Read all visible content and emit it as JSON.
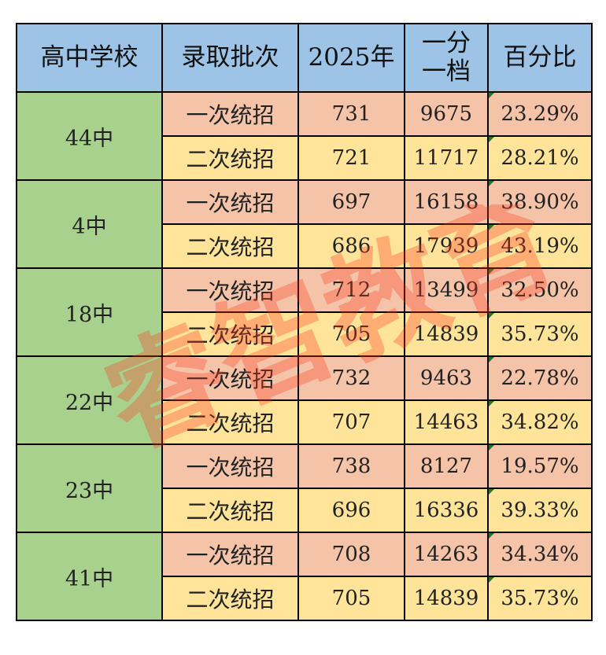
{
  "table": {
    "headers": [
      "高中学校",
      "录取批次",
      "2025年",
      "一分一档",
      "百分比"
    ],
    "header_split": {
      "line1": "一分",
      "line2": "一档"
    },
    "schools": [
      {
        "name": "44中",
        "rows": [
          {
            "batch": "一次统招",
            "score": "731",
            "rank": "9675",
            "percent": "23.29%"
          },
          {
            "batch": "二次统招",
            "score": "721",
            "rank": "11717",
            "percent": "28.21%"
          }
        ]
      },
      {
        "name": "4中",
        "rows": [
          {
            "batch": "一次统招",
            "score": "697",
            "rank": "16158",
            "percent": "38.90%"
          },
          {
            "batch": "二次统招",
            "score": "686",
            "rank": "17939",
            "percent": "43.19%"
          }
        ]
      },
      {
        "name": "18中",
        "rows": [
          {
            "batch": "一次统招",
            "score": "712",
            "rank": "13499",
            "percent": "32.50%"
          },
          {
            "batch": "二次统招",
            "score": "705",
            "rank": "14839",
            "percent": "35.73%"
          }
        ]
      },
      {
        "name": "22中",
        "rows": [
          {
            "batch": "一次统招",
            "score": "732",
            "rank": "9463",
            "percent": "22.78%"
          },
          {
            "batch": "二次统招",
            "score": "707",
            "rank": "14463",
            "percent": "34.82%"
          }
        ]
      },
      {
        "name": "23中",
        "rows": [
          {
            "batch": "一次统招",
            "score": "738",
            "rank": "8127",
            "percent": "19.57%"
          },
          {
            "batch": "二次统招",
            "score": "696",
            "rank": "16336",
            "percent": "39.33%"
          }
        ]
      },
      {
        "name": "41中",
        "rows": [
          {
            "batch": "一次统招",
            "score": "708",
            "rank": "14263",
            "percent": "34.34%"
          },
          {
            "batch": "二次统招",
            "score": "705",
            "rank": "14839",
            "percent": "35.73%"
          }
        ]
      }
    ]
  },
  "watermark": {
    "text": "睿智教育",
    "color": "#ff3b1f"
  },
  "colors": {
    "header": "#9dc3e6",
    "school": "#a9d18e",
    "row_first": "#f4c3a8",
    "row_second": "#ffe49a"
  }
}
